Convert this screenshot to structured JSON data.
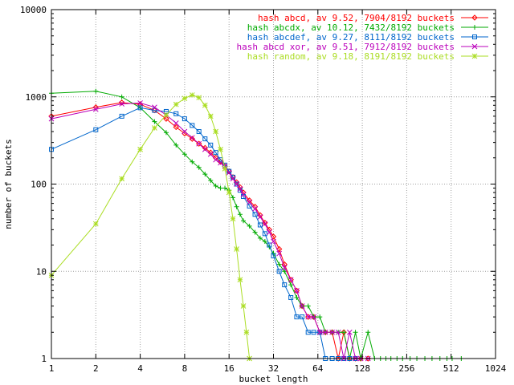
{
  "chart_data": {
    "type": "line",
    "xlabel": "bucket length",
    "ylabel": "number of buckets",
    "xscale": "log2",
    "yscale": "log10",
    "xlim": [
      1,
      1024
    ],
    "ylim": [
      1,
      10000
    ],
    "grid": true,
    "legend_position": "top-right",
    "x_ticks": [
      1,
      2,
      4,
      8,
      16,
      32,
      64,
      128,
      256,
      512,
      1024
    ],
    "x_tick_labels": [
      "1",
      "2",
      "4",
      "8",
      "16",
      "32",
      "64",
      "128",
      "256",
      "512",
      "1024"
    ],
    "y_ticks": [
      1,
      10,
      100,
      1000,
      10000
    ],
    "y_tick_labels": [
      "1",
      "10",
      "100",
      "1000",
      "10000"
    ],
    "series": [
      {
        "name": "hash abcd, av 9.52, 7904/8192 buckets",
        "color": "#ff0000",
        "marker": "diamond",
        "x": [
          1,
          2,
          3,
          4,
          5,
          6,
          7,
          8,
          9,
          10,
          11,
          12,
          13,
          14,
          15,
          16,
          17,
          18,
          19,
          20,
          22,
          24,
          26,
          28,
          30,
          32,
          35,
          38,
          42,
          46,
          50,
          55,
          60,
          66,
          72,
          80,
          88,
          96,
          105,
          115,
          125,
          140
        ],
        "y": [
          600,
          760,
          860,
          820,
          700,
          560,
          450,
          380,
          330,
          290,
          260,
          230,
          200,
          180,
          160,
          140,
          120,
          105,
          92,
          80,
          65,
          55,
          44,
          36,
          30,
          25,
          18,
          12,
          8,
          6,
          4,
          3,
          3,
          2,
          2,
          2,
          1,
          2,
          1,
          1,
          1,
          1
        ]
      },
      {
        "name": "hash abcdx, av 10.12, 7432/8192 buckets",
        "color": "#00aa00",
        "marker": "plus",
        "x": [
          1,
          2,
          3,
          4,
          5,
          6,
          7,
          8,
          9,
          10,
          11,
          12,
          13,
          14,
          15,
          16,
          17,
          18,
          19,
          20,
          22,
          24,
          26,
          28,
          30,
          32,
          35,
          38,
          42,
          46,
          50,
          55,
          60,
          66,
          72,
          80,
          88,
          96,
          105,
          115,
          125,
          140,
          155,
          170,
          185,
          200,
          220,
          240,
          270,
          300,
          340,
          380,
          430,
          480,
          520,
          600
        ],
        "y": [
          1100,
          1160,
          1000,
          750,
          520,
          390,
          280,
          220,
          180,
          155,
          130,
          110,
          95,
          90,
          90,
          85,
          70,
          55,
          45,
          38,
          33,
          28,
          24,
          22,
          19,
          16,
          12,
          10,
          7,
          5,
          4,
          4,
          3,
          3,
          2,
          2,
          2,
          2,
          1,
          2,
          1,
          2,
          1,
          1,
          1,
          1,
          1,
          1,
          1,
          1,
          1,
          1,
          1,
          1,
          1,
          1
        ]
      },
      {
        "name": "hash abcdef, av 9.27, 8111/8192 buckets",
        "color": "#0066cc",
        "marker": "square",
        "x": [
          1,
          2,
          3,
          4,
          5,
          6,
          7,
          8,
          9,
          10,
          11,
          12,
          13,
          14,
          15,
          16,
          17,
          18,
          19,
          20,
          22,
          24,
          26,
          28,
          30,
          32,
          35,
          38,
          42,
          46,
          50,
          55,
          60,
          66,
          72,
          80,
          88,
          96,
          105,
          115
        ],
        "y": [
          250,
          420,
          600,
          750,
          700,
          680,
          640,
          560,
          470,
          400,
          330,
          280,
          230,
          190,
          165,
          140,
          120,
          100,
          85,
          72,
          56,
          45,
          34,
          27,
          20,
          15,
          10,
          7,
          5,
          3,
          3,
          2,
          2,
          2,
          1,
          1,
          1,
          1,
          1,
          1
        ]
      },
      {
        "name": "hash abcd xor, av 9.51, 7912/8192 buckets",
        "color": "#bb00bb",
        "marker": "cross",
        "x": [
          1,
          2,
          3,
          4,
          5,
          6,
          7,
          8,
          9,
          10,
          11,
          12,
          13,
          14,
          15,
          16,
          17,
          18,
          19,
          20,
          22,
          24,
          26,
          28,
          30,
          32,
          35,
          38,
          42,
          46,
          50,
          55,
          60,
          66,
          72,
          80,
          88,
          96,
          105,
          115,
          125,
          140
        ],
        "y": [
          560,
          720,
          830,
          850,
          760,
          620,
          500,
          400,
          340,
          290,
          250,
          220,
          190,
          175,
          160,
          135,
          115,
          100,
          88,
          76,
          62,
          52,
          42,
          35,
          28,
          22,
          16,
          11,
          8,
          6,
          4,
          3,
          3,
          2,
          2,
          2,
          2,
          1,
          2,
          1,
          1,
          1
        ]
      },
      {
        "name": "hash random, av 9.18, 8191/8192 buckets",
        "color": "#aadd22",
        "marker": "star",
        "x": [
          1,
          2,
          3,
          4,
          5,
          6,
          7,
          8,
          9,
          10,
          11,
          12,
          13,
          14,
          15,
          16,
          17,
          18,
          19,
          20,
          21,
          22
        ],
        "y": [
          9,
          35,
          115,
          250,
          440,
          620,
          820,
          960,
          1050,
          980,
          800,
          600,
          400,
          250,
          150,
          80,
          40,
          18,
          8,
          4,
          2,
          1
        ]
      }
    ]
  }
}
